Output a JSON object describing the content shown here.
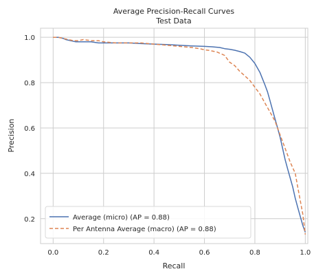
{
  "chart_data": {
    "type": "line",
    "title": "Average Precision-Recall Curves",
    "subtitle": "Test Data",
    "xlabel": "Recall",
    "ylabel": "Precision",
    "xlim": [
      -0.05,
      1.01
    ],
    "ylim": [
      0.09,
      1.04
    ],
    "xticks": [
      0.0,
      0.2,
      0.4,
      0.6,
      0.8,
      1.0
    ],
    "xtick_labels": [
      "0.0",
      "0.2",
      "0.4",
      "0.6",
      "0.8",
      "1.0"
    ],
    "yticks": [
      0.2,
      0.4,
      0.6,
      0.8,
      1.0
    ],
    "ytick_labels": [
      "0.2",
      "0.4",
      "0.6",
      "0.8",
      "1.0"
    ],
    "grid": true,
    "legend_position": "lower-left",
    "series": [
      {
        "name": "Average (micro) (AP = 0.88)",
        "color": "#4c72b0",
        "style": "solid",
        "x": [
          0.0,
          0.02,
          0.04,
          0.05,
          0.07,
          0.09,
          0.12,
          0.15,
          0.18,
          0.21,
          0.25,
          0.3,
          0.35,
          0.4,
          0.45,
          0.5,
          0.55,
          0.6,
          0.63,
          0.66,
          0.68,
          0.7,
          0.72,
          0.74,
          0.76,
          0.78,
          0.8,
          0.82,
          0.84,
          0.85,
          0.86,
          0.87,
          0.88,
          0.89,
          0.9,
          0.91,
          0.92,
          0.93,
          0.94,
          0.95,
          0.96,
          0.97,
          0.98,
          0.99,
          1.0
        ],
        "y": [
          1.0,
          1.0,
          0.995,
          0.99,
          0.985,
          0.98,
          0.98,
          0.98,
          0.975,
          0.975,
          0.975,
          0.975,
          0.972,
          0.97,
          0.968,
          0.965,
          0.962,
          0.96,
          0.958,
          0.955,
          0.95,
          0.947,
          0.943,
          0.937,
          0.93,
          0.912,
          0.885,
          0.845,
          0.79,
          0.76,
          0.72,
          0.68,
          0.64,
          0.6,
          0.56,
          0.51,
          0.46,
          0.42,
          0.38,
          0.34,
          0.29,
          0.25,
          0.21,
          0.17,
          0.14
        ]
      },
      {
        "name": "Per Antenna Average (macro) (AP = 0.88)",
        "color": "#dd8452",
        "style": "dashed",
        "x": [
          0.0,
          0.02,
          0.04,
          0.06,
          0.08,
          0.1,
          0.12,
          0.15,
          0.18,
          0.2,
          0.25,
          0.3,
          0.35,
          0.4,
          0.45,
          0.5,
          0.55,
          0.58,
          0.6,
          0.62,
          0.65,
          0.68,
          0.7,
          0.72,
          0.74,
          0.76,
          0.78,
          0.8,
          0.82,
          0.84,
          0.86,
          0.88,
          0.9,
          0.92,
          0.94,
          0.96,
          0.97,
          0.98,
          0.99,
          1.0
        ],
        "y": [
          1.0,
          1.0,
          0.995,
          0.99,
          0.985,
          0.985,
          0.99,
          0.985,
          0.985,
          0.98,
          0.975,
          0.975,
          0.975,
          0.97,
          0.965,
          0.96,
          0.955,
          0.95,
          0.945,
          0.942,
          0.935,
          0.92,
          0.89,
          0.875,
          0.85,
          0.83,
          0.81,
          0.78,
          0.75,
          0.71,
          0.67,
          0.63,
          0.57,
          0.51,
          0.45,
          0.4,
          0.34,
          0.28,
          0.22,
          0.13
        ]
      }
    ]
  }
}
